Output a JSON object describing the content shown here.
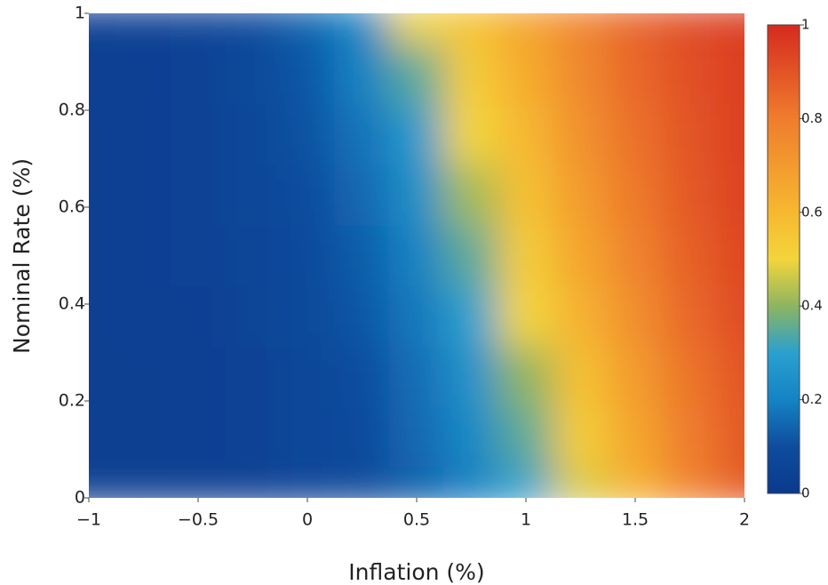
{
  "chart_data": {
    "type": "heatmap",
    "x_label": "Inflation (%)",
    "y_label": "Nominal Rate (%)",
    "x": [
      -1,
      -0.75,
      -0.5,
      -0.25,
      0,
      0.25,
      0.5,
      0.75,
      1,
      1.25,
      1.5,
      1.75,
      2
    ],
    "y": [
      0,
      0.125,
      0.25,
      0.375,
      0.5,
      0.625,
      0.75,
      0.875,
      1
    ],
    "z": [
      [
        0.03,
        0.03,
        0.04,
        0.04,
        0.06,
        0.08,
        0.13,
        0.19,
        0.3,
        0.47,
        0.62,
        0.78,
        0.88
      ],
      [
        0.03,
        0.03,
        0.04,
        0.05,
        0.07,
        0.09,
        0.15,
        0.22,
        0.35,
        0.53,
        0.66,
        0.8,
        0.89
      ],
      [
        0.03,
        0.03,
        0.04,
        0.05,
        0.07,
        0.1,
        0.16,
        0.25,
        0.4,
        0.57,
        0.7,
        0.82,
        0.9
      ],
      [
        0.03,
        0.04,
        0.04,
        0.06,
        0.08,
        0.12,
        0.18,
        0.3,
        0.5,
        0.62,
        0.74,
        0.85,
        0.92
      ],
      [
        0.03,
        0.04,
        0.05,
        0.06,
        0.09,
        0.13,
        0.2,
        0.35,
        0.53,
        0.66,
        0.78,
        0.87,
        0.93
      ],
      [
        0.03,
        0.04,
        0.05,
        0.07,
        0.1,
        0.15,
        0.24,
        0.42,
        0.57,
        0.7,
        0.81,
        0.89,
        0.94
      ],
      [
        0.03,
        0.04,
        0.05,
        0.07,
        0.11,
        0.17,
        0.28,
        0.5,
        0.6,
        0.73,
        0.83,
        0.9,
        0.95
      ],
      [
        0.04,
        0.04,
        0.05,
        0.08,
        0.12,
        0.2,
        0.35,
        0.53,
        0.64,
        0.76,
        0.85,
        0.91,
        0.95
      ],
      [
        0.04,
        0.05,
        0.06,
        0.09,
        0.14,
        0.22,
        0.5,
        0.57,
        0.67,
        0.78,
        0.86,
        0.92,
        0.96
      ]
    ],
    "xlim": [
      -1,
      2
    ],
    "xticks": [
      {
        "value": -1,
        "label": "−1"
      },
      {
        "value": -0.5,
        "label": "−0.5"
      },
      0,
      0.5,
      1,
      1.5,
      2
    ],
    "ylim": [
      0,
      1
    ],
    "yticks": [
      0,
      0.2,
      0.4,
      0.6,
      0.8,
      1
    ],
    "zlim": [
      0,
      1
    ],
    "colorbar_ticks": [
      0,
      0.2,
      0.4,
      0.6,
      0.8,
      1
    ],
    "colorscale": [
      [
        0,
        "#0a3a8c"
      ],
      [
        0.1,
        "#0f4c9e"
      ],
      [
        0.2,
        "#1583c4"
      ],
      [
        0.3,
        "#2aa0cf"
      ],
      [
        0.4,
        "#8db561"
      ],
      [
        0.5,
        "#f3d53a"
      ],
      [
        0.6,
        "#f6b830"
      ],
      [
        0.8,
        "#ef7d2d"
      ],
      [
        1,
        "#d52a1f"
      ]
    ]
  }
}
